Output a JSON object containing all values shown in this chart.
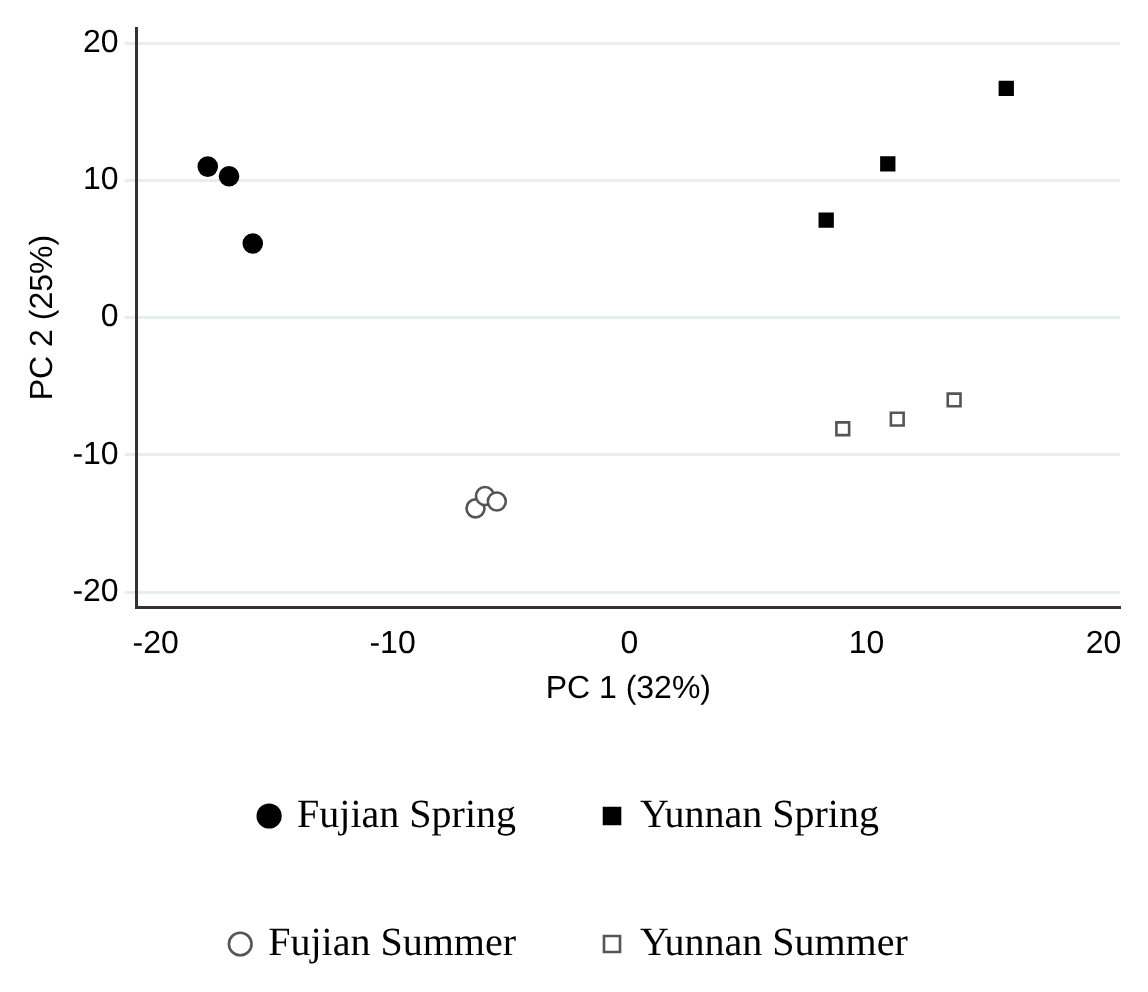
{
  "chart_data": {
    "type": "scatter",
    "xlabel": "PC 1 (32%)",
    "ylabel": "PC 2 (25%)",
    "xlim": [
      -20.8,
      20.7
    ],
    "xticks": [
      -20,
      -10,
      0,
      10,
      20
    ],
    "ylim": [
      -21.1,
      21.1
    ],
    "yticks": [
      -20,
      -10,
      0,
      10,
      20
    ],
    "grid": "y",
    "legend": "bottom",
    "series": [
      {
        "name": "Fujian Spring",
        "color": "#000000",
        "marker": "circle",
        "x": [
          -17.8,
          -16.9,
          -15.9
        ],
        "values": [
          11.0,
          10.3,
          5.4
        ]
      },
      {
        "name": "Yunnan Spring",
        "color": "#000000",
        "marker": "square",
        "x": [
          8.3,
          10.9,
          15.9
        ],
        "values": [
          7.1,
          11.2,
          16.7
        ]
      },
      {
        "name": "Fujian Summer",
        "color": "#555555",
        "marker": "circle-open",
        "x": [
          -6.5,
          -6.1,
          -5.6
        ],
        "values": [
          -13.9,
          -13.0,
          -13.4
        ]
      },
      {
        "name": "Yunnan Summer",
        "color": "#555555",
        "marker": "square-open",
        "x": [
          9.0,
          11.3,
          13.7
        ],
        "values": [
          -8.1,
          -7.4,
          -6.0
        ]
      }
    ]
  }
}
